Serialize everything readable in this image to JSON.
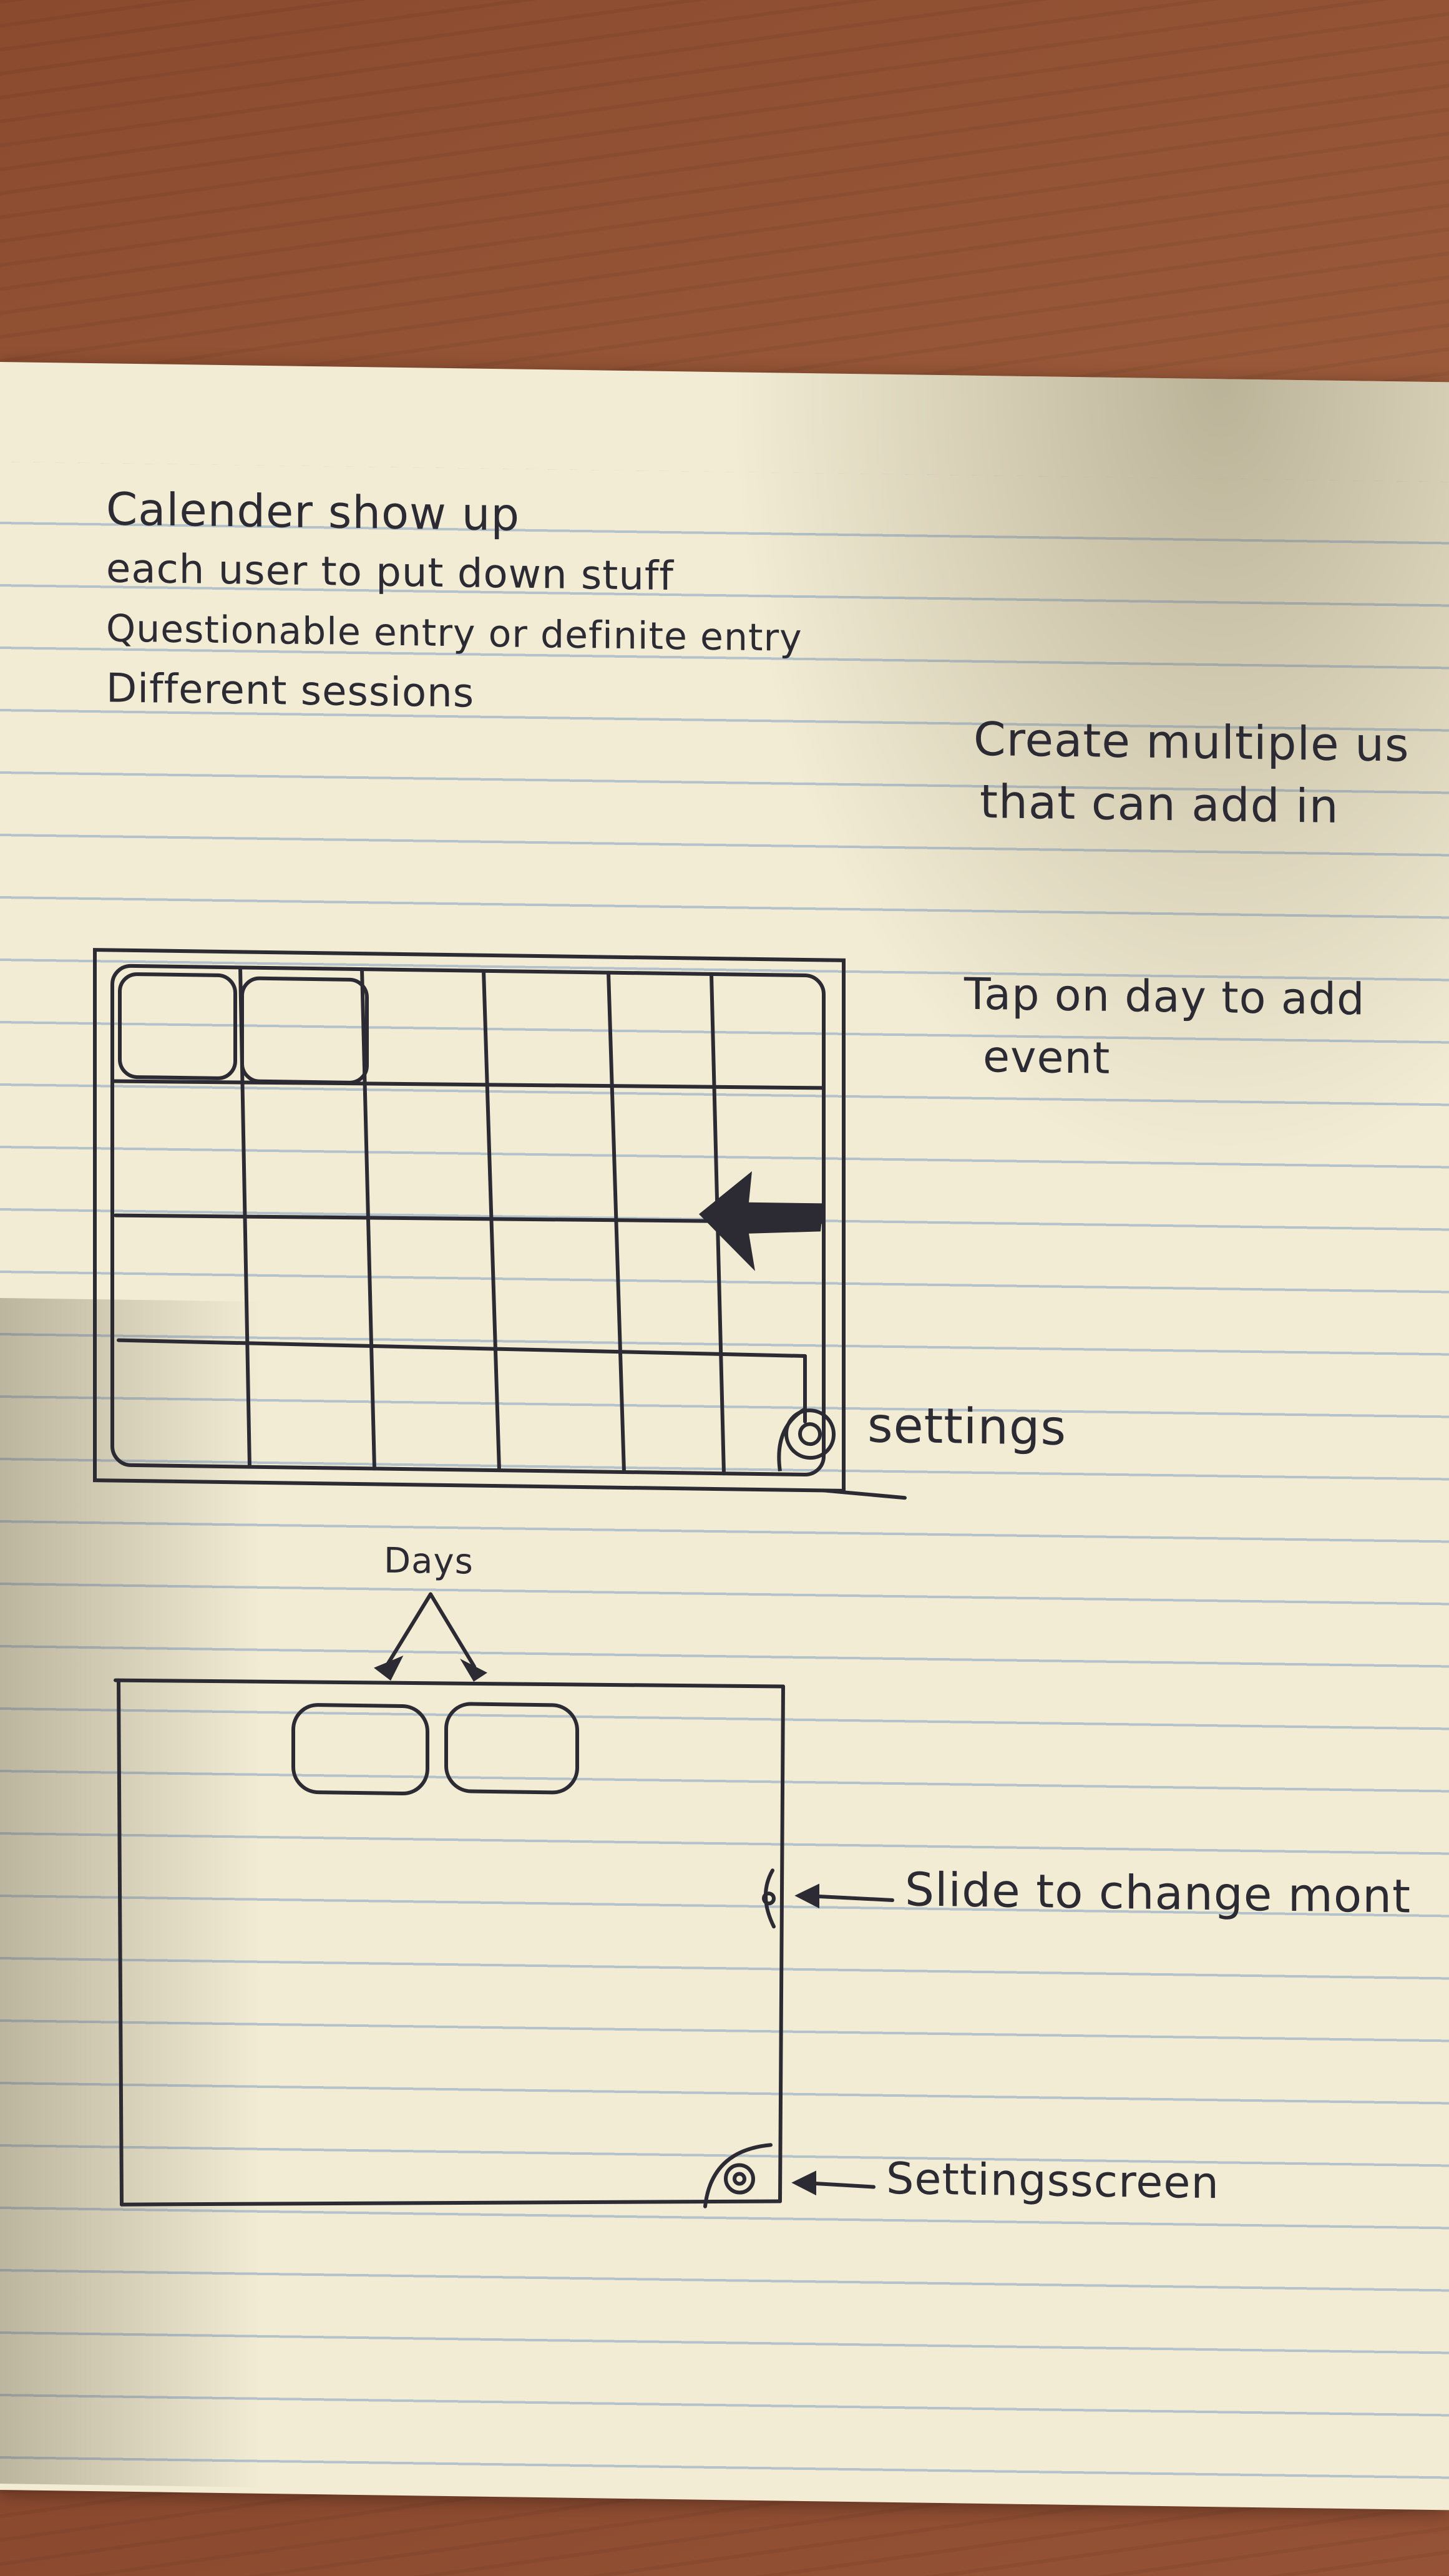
{
  "notes": {
    "lines": [
      "Calender show up",
      "each user to put down stuff",
      "Questionable entry or definite entry",
      "Different sessions"
    ],
    "right_note_1": "Create multiple us",
    "right_note_2": "that can add in",
    "tap_note_1": "Tap on day to add",
    "tap_note_2": "event"
  },
  "sketch1": {
    "settings_label": "settings"
  },
  "sketch2": {
    "days_label": "Days",
    "slide_label": "Slide to change mont",
    "settings_screen_label": "Settingsscreen"
  },
  "colors": {
    "paper": "#f2ecd4",
    "ink": "#2c2b33",
    "rule_lines": "#9fb4c9",
    "table": "#8a4a2e"
  }
}
